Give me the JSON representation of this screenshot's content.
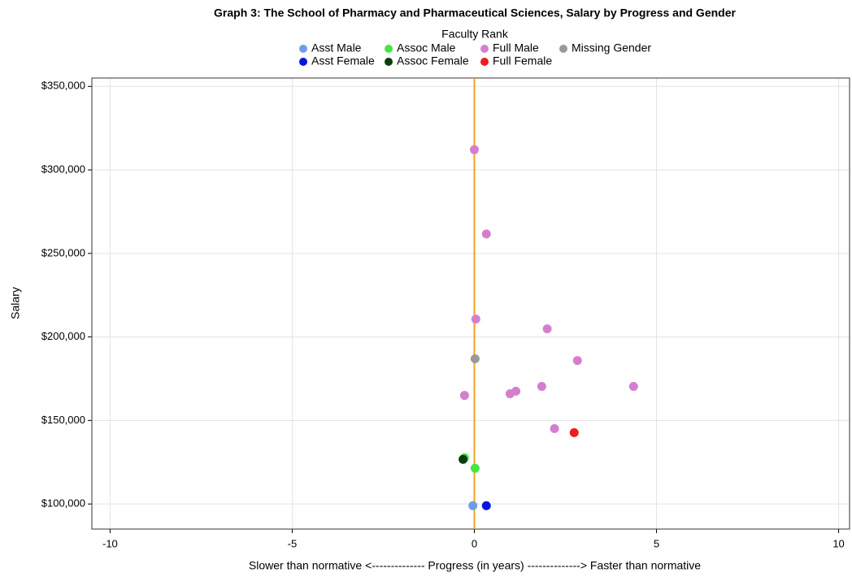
{
  "chart_data": {
    "type": "scatter",
    "title": "Graph 3: The School of Pharmacy and Pharmaceutical Sciences, Salary by Progress and Gender",
    "legend_title": "Faculty Rank",
    "x_label": "Slower than normative <-------------- Progress (in years) -------------->  Faster than normative",
    "y_label": "Salary",
    "xlim": [
      -10.5,
      10.3
    ],
    "ylim": [
      85000,
      355000
    ],
    "xticks": [
      -10,
      -5,
      0,
      5,
      10
    ],
    "yticks": [
      {
        "value": 100000,
        "label": "$100,000"
      },
      {
        "value": 150000,
        "label": "$150,000"
      },
      {
        "value": 200000,
        "label": "$200,000"
      },
      {
        "value": 250000,
        "label": "$250,000"
      },
      {
        "value": 300000,
        "label": "$300,000"
      },
      {
        "value": 350000,
        "label": "$350,000"
      }
    ],
    "grid": true,
    "vline": 0,
    "vline_color": "#f5a21b",
    "series": [
      {
        "name": "Asst Male",
        "color": "#6f9cf0",
        "x": [
          -0.04
        ],
        "values": [
          99000
        ]
      },
      {
        "name": "Asst Female",
        "color": "#0a14e0",
        "x": [
          0.33
        ],
        "values": [
          99000
        ]
      },
      {
        "name": "Assoc Male",
        "color": "#44e644",
        "x": [
          -0.27,
          0.02
        ],
        "values": [
          127700,
          121400
        ]
      },
      {
        "name": "Assoc Female",
        "color": "#0b3d0b",
        "x": [
          -0.31
        ],
        "values": [
          126700
        ]
      },
      {
        "name": "Full Male",
        "color": "#d47fce",
        "x": [
          0.0,
          0.33,
          0.04,
          2.0,
          2.83,
          -0.27,
          0.98,
          1.14,
          1.85,
          4.37,
          2.2
        ],
        "values": [
          312100,
          261650,
          210700,
          204850,
          185900,
          165000,
          166000,
          167500,
          170400,
          170400,
          145150
        ]
      },
      {
        "name": "Full Female",
        "color": "#ee1c1c",
        "x": [
          2.74
        ],
        "values": [
          142700
        ]
      },
      {
        "name": "Missing Gender",
        "color": "#999999",
        "x": [
          0.02
        ],
        "values": [
          186900
        ]
      }
    ]
  }
}
